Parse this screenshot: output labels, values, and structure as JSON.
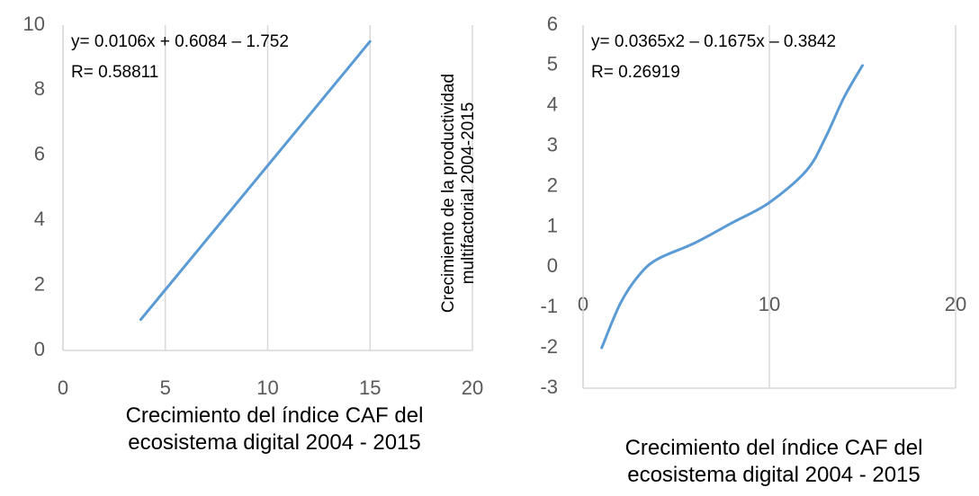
{
  "chart_data": [
    {
      "type": "line",
      "x": [
        3.8,
        15
      ],
      "values": [
        0.95,
        9.5
      ],
      "color": "#5b9bd5",
      "xlim": [
        0,
        20
      ],
      "xticks": [
        0,
        5,
        10,
        15,
        20
      ],
      "ylim": [
        0,
        10
      ],
      "yticks": [
        0,
        2,
        4,
        6,
        8,
        10
      ],
      "grid": "x",
      "smooth": false,
      "annotations": [
        "y= 0.0106x + 0.6084 – 1.752",
        "R= 0.58811"
      ],
      "xlabel": "Crecimiento del índice CAF del ecosistema digital 2004 - 2015"
    },
    {
      "type": "line",
      "x": [
        1,
        2,
        3,
        4,
        6,
        8,
        10,
        12,
        13,
        14,
        15
      ],
      "values": [
        -2,
        -0.9,
        -0.2,
        0.2,
        0.6,
        1.1,
        1.6,
        2.4,
        3.2,
        4.2,
        5
      ],
      "color": "#5b9bd5",
      "xlim": [
        0,
        20
      ],
      "xticks": [
        0,
        10,
        20
      ],
      "ylim": [
        -3,
        6
      ],
      "yticks": [
        -3,
        -2,
        -1,
        0,
        1,
        2,
        3,
        4,
        5,
        6
      ],
      "grid": "x",
      "smooth": true,
      "annotations": [
        "y= 0.0365x2 – 0.1675x – 0.3842",
        "R= 0.26919"
      ],
      "ylabel": "Crecimiento de la productividad multifactorial 2004-2015",
      "xlabel": "Crecimiento del índice CAF del ecosistema digital 2004 - 2015"
    }
  ]
}
